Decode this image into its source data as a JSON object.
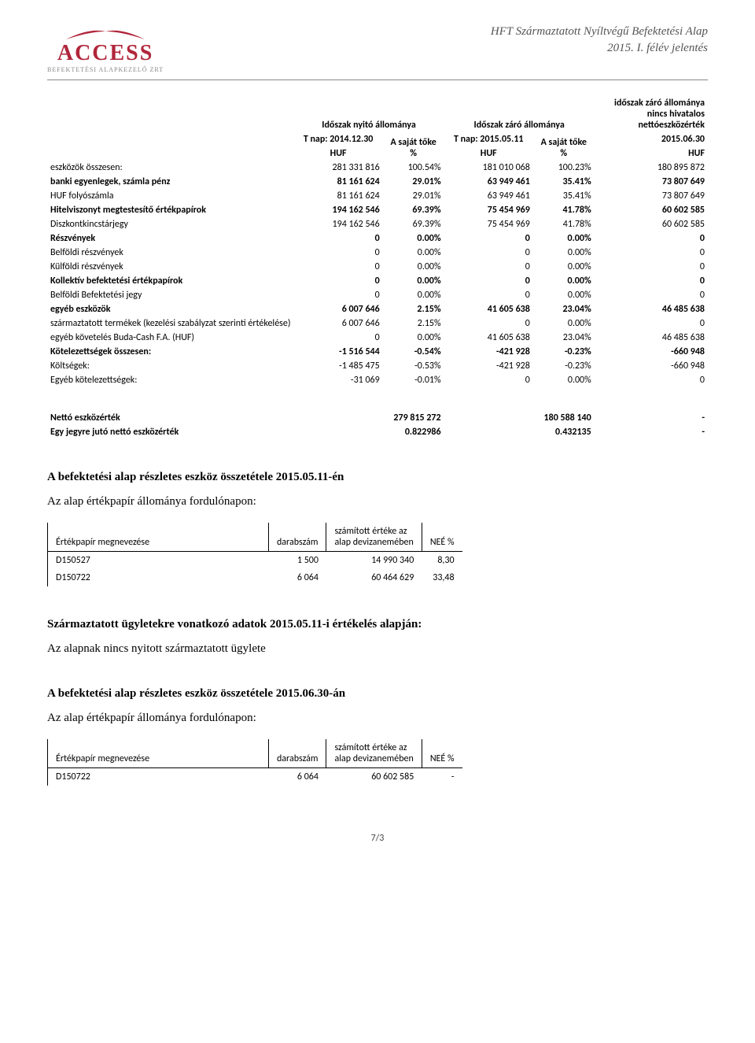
{
  "header": {
    "logo_main": "ACCESS",
    "logo_sub": "BEFEKTETÉSI ALAPKEZELŐ ZRT",
    "title_line1": "HFT Származtatott Nyíltvégű Befektetési Alap",
    "title_line2": "2015. I. félév jelentés"
  },
  "table_headers": {
    "open_period": "Időszak nyitó állománya",
    "close_period": "Időszak záró állománya",
    "close_unofficial_l1": "időszak záró állománya",
    "close_unofficial_l2": "nincs hivatalos",
    "close_unofficial_l3": "nettóeszközérték",
    "tnap_open": "T nap: 2014.12.30",
    "tnap_close": "T nap: 2015.05.11",
    "date_unoff": "2015.06.30",
    "own_cap": "A saját tőke",
    "pct": "%",
    "huf": "HUF"
  },
  "rows": [
    {
      "label": "eszközök összesen:",
      "v1": "281 331 816",
      "p1": "100.54%",
      "v2": "181 010 068",
      "p2": "100.23%",
      "v3": "180 895 872",
      "bold": false
    },
    {
      "label": "banki egyenlegek, számla pénz",
      "v1": "81 161 624",
      "p1": "29.01%",
      "v2": "63 949 461",
      "p2": "35.41%",
      "v3": "73 807 649",
      "bold": true
    },
    {
      "label": "HUF folyószámla",
      "v1": "81 161 624",
      "p1": "29.01%",
      "v2": "63 949 461",
      "p2": "35.41%",
      "v3": "73 807 649",
      "bold": false
    },
    {
      "label": "Hitelviszonyt megtestesítő értékpapírok",
      "v1": "194 162 546",
      "p1": "69.39%",
      "v2": "75 454 969",
      "p2": "41.78%",
      "v3": "60 602 585",
      "bold": true
    },
    {
      "label": "Diszkontkincstárjegy",
      "v1": "194 162 546",
      "p1": "69.39%",
      "v2": "75 454 969",
      "p2": "41.78%",
      "v3": "60 602 585",
      "bold": false
    },
    {
      "label": "Részvények",
      "v1": "0",
      "p1": "0.00%",
      "v2": "0",
      "p2": "0.00%",
      "v3": "0",
      "bold": true
    },
    {
      "label": "Belföldi részvények",
      "v1": "0",
      "p1": "0.00%",
      "v2": "0",
      "p2": "0.00%",
      "v3": "0",
      "bold": false
    },
    {
      "label": "Külföldi részvények",
      "v1": "0",
      "p1": "0.00%",
      "v2": "0",
      "p2": "0.00%",
      "v3": "0",
      "bold": false
    },
    {
      "label": "Kollektív befektetési értékpapírok",
      "v1": "0",
      "p1": "0.00%",
      "v2": "0",
      "p2": "0.00%",
      "v3": "0",
      "bold": true
    },
    {
      "label": "Belföldi Befektetési jegy",
      "v1": "0",
      "p1": "0.00%",
      "v2": "0",
      "p2": "0.00%",
      "v3": "0",
      "bold": false
    },
    {
      "label": "egyéb eszközök",
      "v1": "6 007 646",
      "p1": "2.15%",
      "v2": "41 605 638",
      "p2": "23.04%",
      "v3": "46 485 638",
      "bold": true
    },
    {
      "label": "származtatott termékek (kezelési szabályzat szerinti értékelése)",
      "v1": "6 007 646",
      "p1": "2.15%",
      "v2": "0",
      "p2": "0.00%",
      "v3": "0",
      "bold": false
    },
    {
      "label": "egyéb követelés Buda-Cash F.A. (HUF)",
      "v1": "0",
      "p1": "0.00%",
      "v2": "41 605 638",
      "p2": "23.04%",
      "v3": "46 485 638",
      "bold": false
    },
    {
      "label": "Kötelezettségek összesen:",
      "v1": "-1 516 544",
      "p1": "-0.54%",
      "v2": "-421 928",
      "p2": "-0.23%",
      "v3": "-660 948",
      "bold": true
    },
    {
      "label": "Költségek:",
      "v1": "-1 485 475",
      "p1": "-0.53%",
      "v2": "-421 928",
      "p2": "-0.23%",
      "v3": "-660 948",
      "bold": false
    },
    {
      "label": "Egyéb kötelezettségek:",
      "v1": "-31 069",
      "p1": "-0.01%",
      "v2": "0",
      "p2": "0.00%",
      "v3": "0",
      "bold": false
    }
  ],
  "summary": [
    {
      "label": "Nettó eszközérték",
      "v1": "279 815 272",
      "v2": "180 588 140",
      "v3": "-"
    },
    {
      "label": "Egy jegyre jutó nettó eszközérték",
      "v1": "0.822986",
      "v2": "0.432135",
      "v3": "-"
    }
  ],
  "section1": {
    "title": "A befektetési alap részletes eszköz összetétele 2015.05.11-én",
    "subtitle": "Az alap értékpapír állománya fordulónapon:"
  },
  "securities_headers": {
    "name": "Értékpapír megnevezése",
    "qty": "darabszám",
    "calc_value_l1": "számított értéke az",
    "calc_value_l2": "alap devizanemében",
    "nee": "NEÉ %"
  },
  "securities1": [
    {
      "name": "D150527",
      "qty": "1 500",
      "val": "14 990 340",
      "pct": "8,30"
    },
    {
      "name": "D150722",
      "qty": "6 064",
      "val": "60 464 629",
      "pct": "33,48"
    }
  ],
  "section2": {
    "title": "Származtatott ügyletekre vonatkozó adatok 2015.05.11-i  értékelés alapján:",
    "line": "Az alapnak nincs nyitott származtatott ügylete"
  },
  "section3": {
    "title": "A befektetési alap részletes eszköz összetétele 2015.06.30-án",
    "subtitle": "Az alap értékpapír állománya fordulónapon:"
  },
  "securities2": [
    {
      "name": "D150722",
      "qty": "6 064",
      "val": "60 602 585",
      "pct": "-"
    }
  ],
  "footer": "7/3"
}
